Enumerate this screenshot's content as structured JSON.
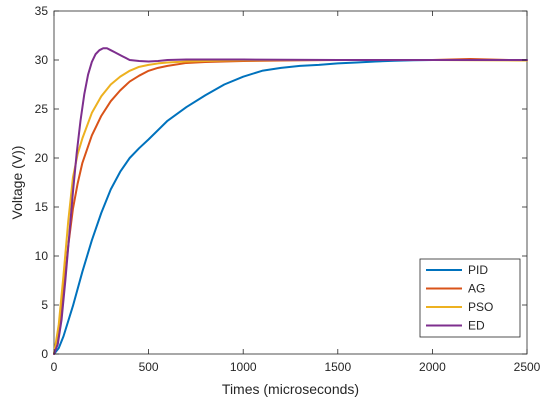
{
  "chart_data": {
    "type": "line",
    "xlabel": "Times (microseconds)",
    "ylabel": "Voltage (V))",
    "xlim": [
      0,
      2500
    ],
    "ylim": [
      0,
      35
    ],
    "xticks": [
      0,
      500,
      1000,
      1500,
      2000,
      2500
    ],
    "yticks": [
      0,
      5,
      10,
      15,
      20,
      25,
      30,
      35
    ],
    "grid": false,
    "legend_position": "bottom-right",
    "series": [
      {
        "name": "PID",
        "color": "#0072BD",
        "x": [
          0,
          25,
          50,
          100,
          150,
          200,
          250,
          300,
          350,
          400,
          450,
          500,
          600,
          700,
          800,
          900,
          1000,
          1100,
          1200,
          1300,
          1400,
          1500,
          1600,
          1700,
          1800,
          1900,
          2000,
          2100,
          2200,
          2300,
          2400,
          2500
        ],
        "y": [
          0,
          0.6,
          1.8,
          4.9,
          8.4,
          11.6,
          14.4,
          16.8,
          18.6,
          20.0,
          21.0,
          21.9,
          23.8,
          25.2,
          26.4,
          27.5,
          28.3,
          28.9,
          29.2,
          29.4,
          29.5,
          29.65,
          29.75,
          29.85,
          29.92,
          29.98,
          30.0,
          30.0,
          30.0,
          30.0,
          30.0,
          30.0
        ]
      },
      {
        "name": "AG",
        "color": "#D95319",
        "x": [
          0,
          25,
          50,
          75,
          100,
          125,
          150,
          200,
          250,
          300,
          350,
          400,
          450,
          500,
          550,
          600,
          700,
          800,
          900,
          1000,
          1200,
          1500,
          2000,
          2200,
          2500
        ],
        "y": [
          0,
          2.5,
          6.5,
          11.0,
          14.8,
          17.4,
          19.5,
          22.3,
          24.3,
          25.8,
          26.9,
          27.8,
          28.4,
          28.9,
          29.2,
          29.4,
          29.7,
          29.8,
          29.85,
          29.9,
          29.95,
          30.0,
          30.0,
          30.1,
          29.95
        ]
      },
      {
        "name": "PSO",
        "color": "#EDB120",
        "x": [
          0,
          25,
          50,
          75,
          100,
          125,
          150,
          200,
          250,
          300,
          350,
          400,
          450,
          500,
          550,
          600,
          700,
          800,
          900,
          1000,
          1200,
          1500,
          2000,
          2500
        ],
        "y": [
          0,
          3.0,
          8.0,
          13.5,
          18.0,
          20.4,
          22.0,
          24.6,
          26.3,
          27.5,
          28.3,
          28.9,
          29.3,
          29.5,
          29.65,
          29.75,
          29.85,
          29.9,
          29.95,
          29.97,
          30.0,
          30.0,
          30.0,
          29.95
        ]
      },
      {
        "name": "ED",
        "color": "#7E2F8E",
        "x": [
          0,
          20,
          40,
          60,
          80,
          100,
          120,
          140,
          160,
          180,
          200,
          220,
          240,
          260,
          280,
          300,
          320,
          340,
          360,
          380,
          400,
          450,
          500,
          550,
          600,
          700,
          800,
          1000,
          1500,
          2000,
          2500
        ],
        "y": [
          0,
          1.0,
          3.5,
          7.5,
          12.0,
          16.5,
          20.5,
          23.8,
          26.5,
          28.5,
          29.8,
          30.6,
          31.0,
          31.2,
          31.2,
          31.0,
          30.8,
          30.6,
          30.4,
          30.2,
          30.0,
          29.9,
          29.85,
          29.9,
          30.0,
          30.05,
          30.05,
          30.05,
          30.0,
          30.0,
          30.0
        ]
      }
    ]
  }
}
